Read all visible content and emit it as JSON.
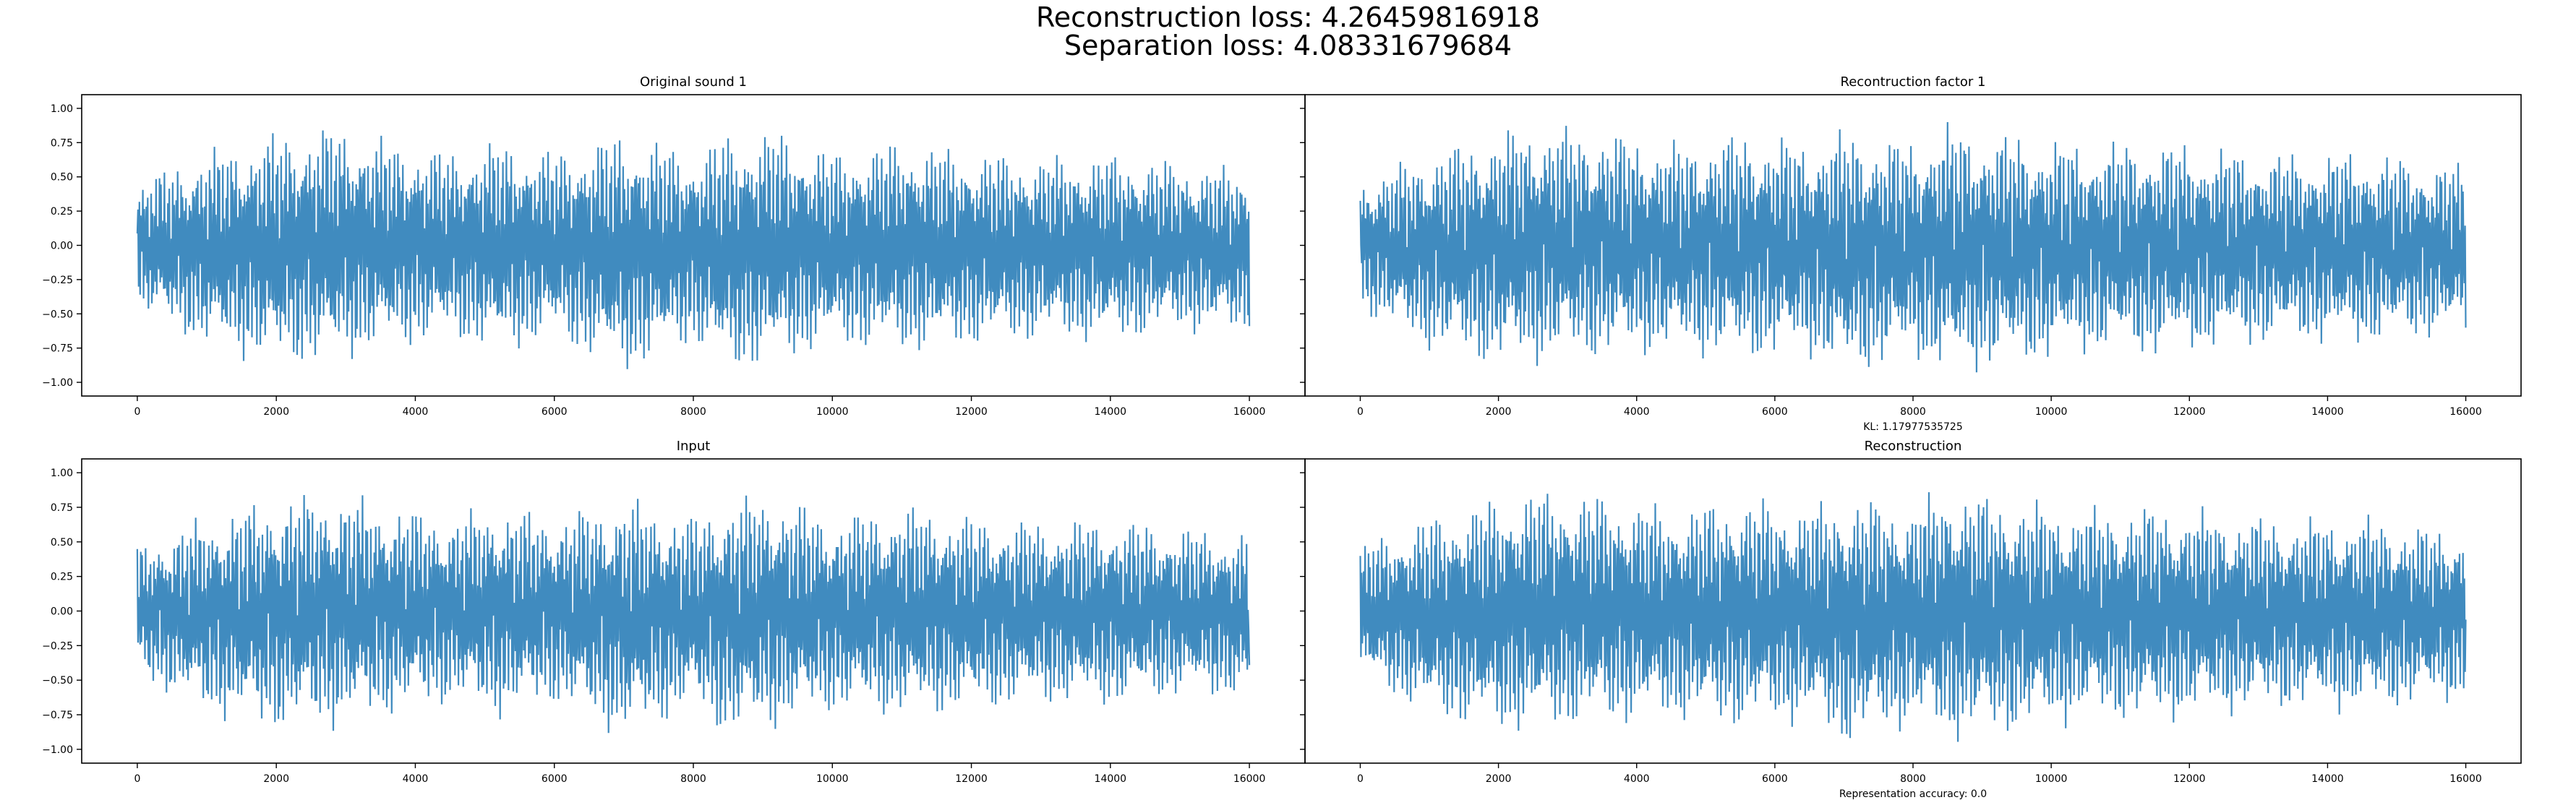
{
  "suptitle": {
    "line1": "Reconstruction loss: 4.26459816918",
    "line2": "Separation loss: 4.08331679684"
  },
  "chart_data": [
    {
      "type": "line",
      "title": "Original sound 1",
      "xlabel": "",
      "ylabel": "",
      "xlim": [
        -800,
        16800
      ],
      "ylim": [
        -1.1,
        1.1
      ],
      "xticks": [
        0,
        2000,
        4000,
        6000,
        8000,
        10000,
        12000,
        14000,
        16000
      ],
      "yticks": [
        -1.0,
        -0.75,
        -0.5,
        -0.25,
        0.0,
        0.25,
        0.5,
        0.75,
        1.0
      ],
      "ytick_labels": [
        "−1.00",
        "−0.75",
        "−0.50",
        "−0.25",
        "0.00",
        "0.25",
        "0.50",
        "0.75",
        "1.00"
      ],
      "series_color": "#1f77b4",
      "n_samples": 16000,
      "envelope": {
        "x": [
          0,
          1000,
          2000,
          2800,
          3500,
          4500,
          5200,
          6000,
          7000,
          8000,
          8500,
          9200,
          10000,
          11000,
          12000,
          13000,
          14000,
          15000,
          16000
        ],
        "max": [
          0.5,
          0.72,
          0.86,
          0.92,
          0.82,
          0.72,
          0.8,
          0.72,
          0.87,
          0.72,
          0.86,
          0.88,
          0.72,
          0.8,
          0.72,
          0.68,
          0.7,
          0.64,
          0.58
        ],
        "min": [
          -0.5,
          -0.78,
          -0.92,
          -0.9,
          -0.8,
          -0.72,
          -0.82,
          -0.72,
          -0.98,
          -0.75,
          -0.97,
          -0.9,
          -0.77,
          -0.82,
          -0.77,
          -0.72,
          -0.74,
          -0.66,
          -0.68
        ]
      },
      "annotation": ""
    },
    {
      "type": "line",
      "title": "Recontruction factor 1",
      "xlabel": "KL: 1.17977535725",
      "ylabel": "",
      "xlim": [
        -800,
        16800
      ],
      "ylim": [
        -1.1,
        1.1
      ],
      "xticks": [
        0,
        2000,
        4000,
        6000,
        8000,
        10000,
        12000,
        14000,
        16000
      ],
      "series_color": "#1f77b4",
      "n_samples": 16000,
      "envelope": {
        "x": [
          0,
          1000,
          2000,
          2500,
          3500,
          4500,
          5500,
          6500,
          7000,
          8000,
          8500,
          9500,
          10500,
          11500,
          12500,
          13500,
          14500,
          15500,
          16000
        ],
        "max": [
          0.5,
          0.72,
          0.86,
          0.92,
          0.88,
          0.78,
          0.86,
          0.8,
          0.88,
          0.8,
          0.92,
          0.84,
          0.78,
          0.8,
          0.74,
          0.7,
          0.72,
          0.64,
          0.62
        ],
        "min": [
          -0.5,
          -0.8,
          -0.92,
          -0.9,
          -0.86,
          -0.82,
          -0.88,
          -0.84,
          -1.0,
          -0.86,
          -0.98,
          -0.92,
          -0.82,
          -0.84,
          -0.78,
          -0.74,
          -0.76,
          -0.7,
          -0.68
        ]
      },
      "annotation": ""
    },
    {
      "type": "line",
      "title": "Input",
      "xlabel": "",
      "ylabel": "",
      "xlim": [
        -800,
        16800
      ],
      "ylim": [
        -1.1,
        1.1
      ],
      "xticks": [
        0,
        2000,
        4000,
        6000,
        8000,
        10000,
        12000,
        14000,
        16000
      ],
      "yticks": [
        -1.0,
        -0.75,
        -0.5,
        -0.25,
        0.0,
        0.25,
        0.5,
        0.75,
        1.0
      ],
      "ytick_labels": [
        "−1.00",
        "−0.75",
        "−0.50",
        "−0.25",
        "0.00",
        "0.25",
        "0.50",
        "0.75",
        "1.00"
      ],
      "series_color": "#1f77b4",
      "n_samples": 16000,
      "envelope": {
        "x": [
          0,
          1000,
          2000,
          2800,
          3500,
          4500,
          5200,
          6000,
          7000,
          8000,
          8500,
          9200,
          10000,
          11000,
          12000,
          13000,
          14000,
          15000,
          16000
        ],
        "max": [
          0.5,
          0.72,
          0.86,
          0.9,
          0.82,
          0.72,
          0.8,
          0.72,
          0.86,
          0.72,
          0.86,
          0.88,
          0.72,
          0.8,
          0.72,
          0.68,
          0.7,
          0.64,
          0.58
        ],
        "min": [
          -0.5,
          -0.78,
          -0.9,
          -0.88,
          -0.8,
          -0.7,
          -0.8,
          -0.7,
          -0.96,
          -0.74,
          -0.96,
          -0.88,
          -0.76,
          -0.8,
          -0.76,
          -0.7,
          -0.72,
          -0.64,
          -0.66
        ]
      },
      "annotation": ""
    },
    {
      "type": "line",
      "title": "Reconstruction",
      "xlabel": "Representation accuracy: 0.0",
      "ylabel": "",
      "xlim": [
        -800,
        16800
      ],
      "ylim": [
        -1.1,
        1.1
      ],
      "xticks": [
        0,
        2000,
        4000,
        6000,
        8000,
        10000,
        12000,
        14000,
        16000
      ],
      "series_color": "#1f77b4",
      "n_samples": 16000,
      "envelope": {
        "x": [
          0,
          1000,
          2000,
          2500,
          3500,
          4500,
          5500,
          6500,
          7000,
          8000,
          8500,
          9500,
          10500,
          11500,
          12500,
          13500,
          14500,
          15500,
          16000
        ],
        "max": [
          0.5,
          0.72,
          0.86,
          0.92,
          0.88,
          0.78,
          0.86,
          0.8,
          0.88,
          0.8,
          0.94,
          0.84,
          0.78,
          0.8,
          0.74,
          0.7,
          0.72,
          0.64,
          0.62
        ],
        "min": [
          -0.5,
          -0.8,
          -0.92,
          -0.9,
          -0.86,
          -0.82,
          -0.88,
          -0.84,
          -1.02,
          -0.86,
          -0.98,
          -0.92,
          -0.82,
          -0.84,
          -0.78,
          -0.74,
          -0.76,
          -0.7,
          -0.68
        ]
      },
      "annotation": ""
    }
  ]
}
